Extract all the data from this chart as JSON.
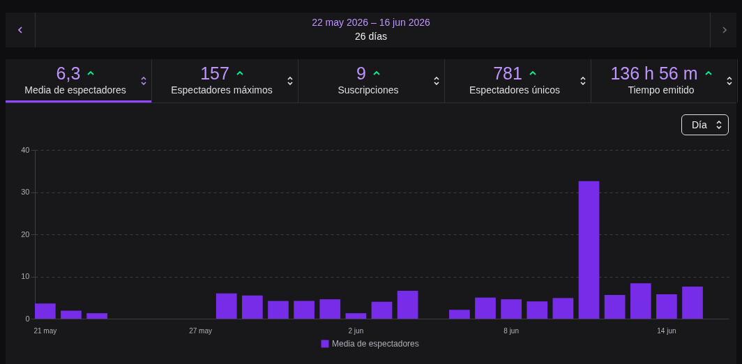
{
  "chart_data": {
    "type": "bar",
    "title": "22 may 2026 – 16 jun 2026",
    "subtitle": "26 días",
    "annotations": [
      "6,3",
      "Media de espectadores",
      "157",
      "Espectadores máximos",
      "9",
      "Suscripciones",
      "781",
      "Espectadores únicos",
      "136 h 56 m",
      "Tiempo emitido",
      "Día"
    ],
    "categories": [
      "21 may",
      null,
      null,
      null,
      null,
      null,
      "27 may",
      null,
      null,
      null,
      null,
      null,
      "2 jun",
      null,
      null,
      null,
      null,
      null,
      "8 jun",
      null,
      null,
      null,
      null,
      null,
      "14 jun",
      null,
      null
    ],
    "series": [
      {
        "name": "Media de espectadores",
        "color": "#772ce8",
        "values": [
          3.6,
          1.9,
          1.3,
          null,
          null,
          null,
          null,
          6.0,
          5.5,
          4.2,
          4.2,
          4.6,
          1.3,
          4.0,
          6.6,
          null,
          2.1,
          5.0,
          4.6,
          4.1,
          4.9,
          32.6,
          5.6,
          8.4,
          5.8,
          7.6,
          null
        ]
      }
    ],
    "ylim": [
      0,
      40
    ],
    "yticks": [
      0,
      10,
      20,
      30,
      40
    ],
    "grid": "y",
    "legend": "bottom"
  }
}
